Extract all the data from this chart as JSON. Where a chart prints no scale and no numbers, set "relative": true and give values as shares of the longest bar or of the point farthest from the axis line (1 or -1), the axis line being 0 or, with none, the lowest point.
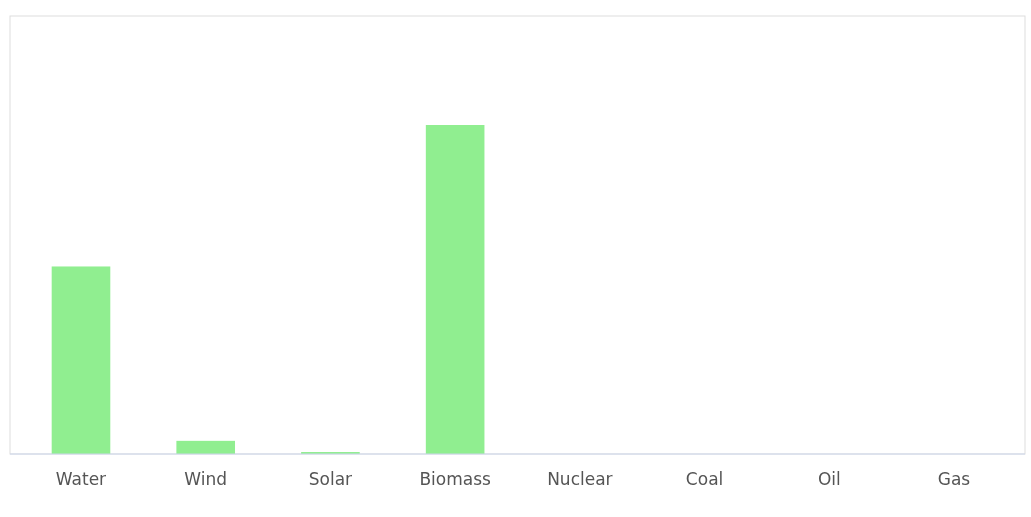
{
  "chart_data": {
    "type": "bar",
    "relative": true,
    "categories": [
      "Water",
      "Wind",
      "Solar",
      "Biomass",
      "Nuclear",
      "Coal",
      "Oil",
      "Gas"
    ],
    "values": [
      0.57,
      0.04,
      0.006,
      1,
      0,
      0,
      0,
      0
    ],
    "color": "#90ee90"
  }
}
